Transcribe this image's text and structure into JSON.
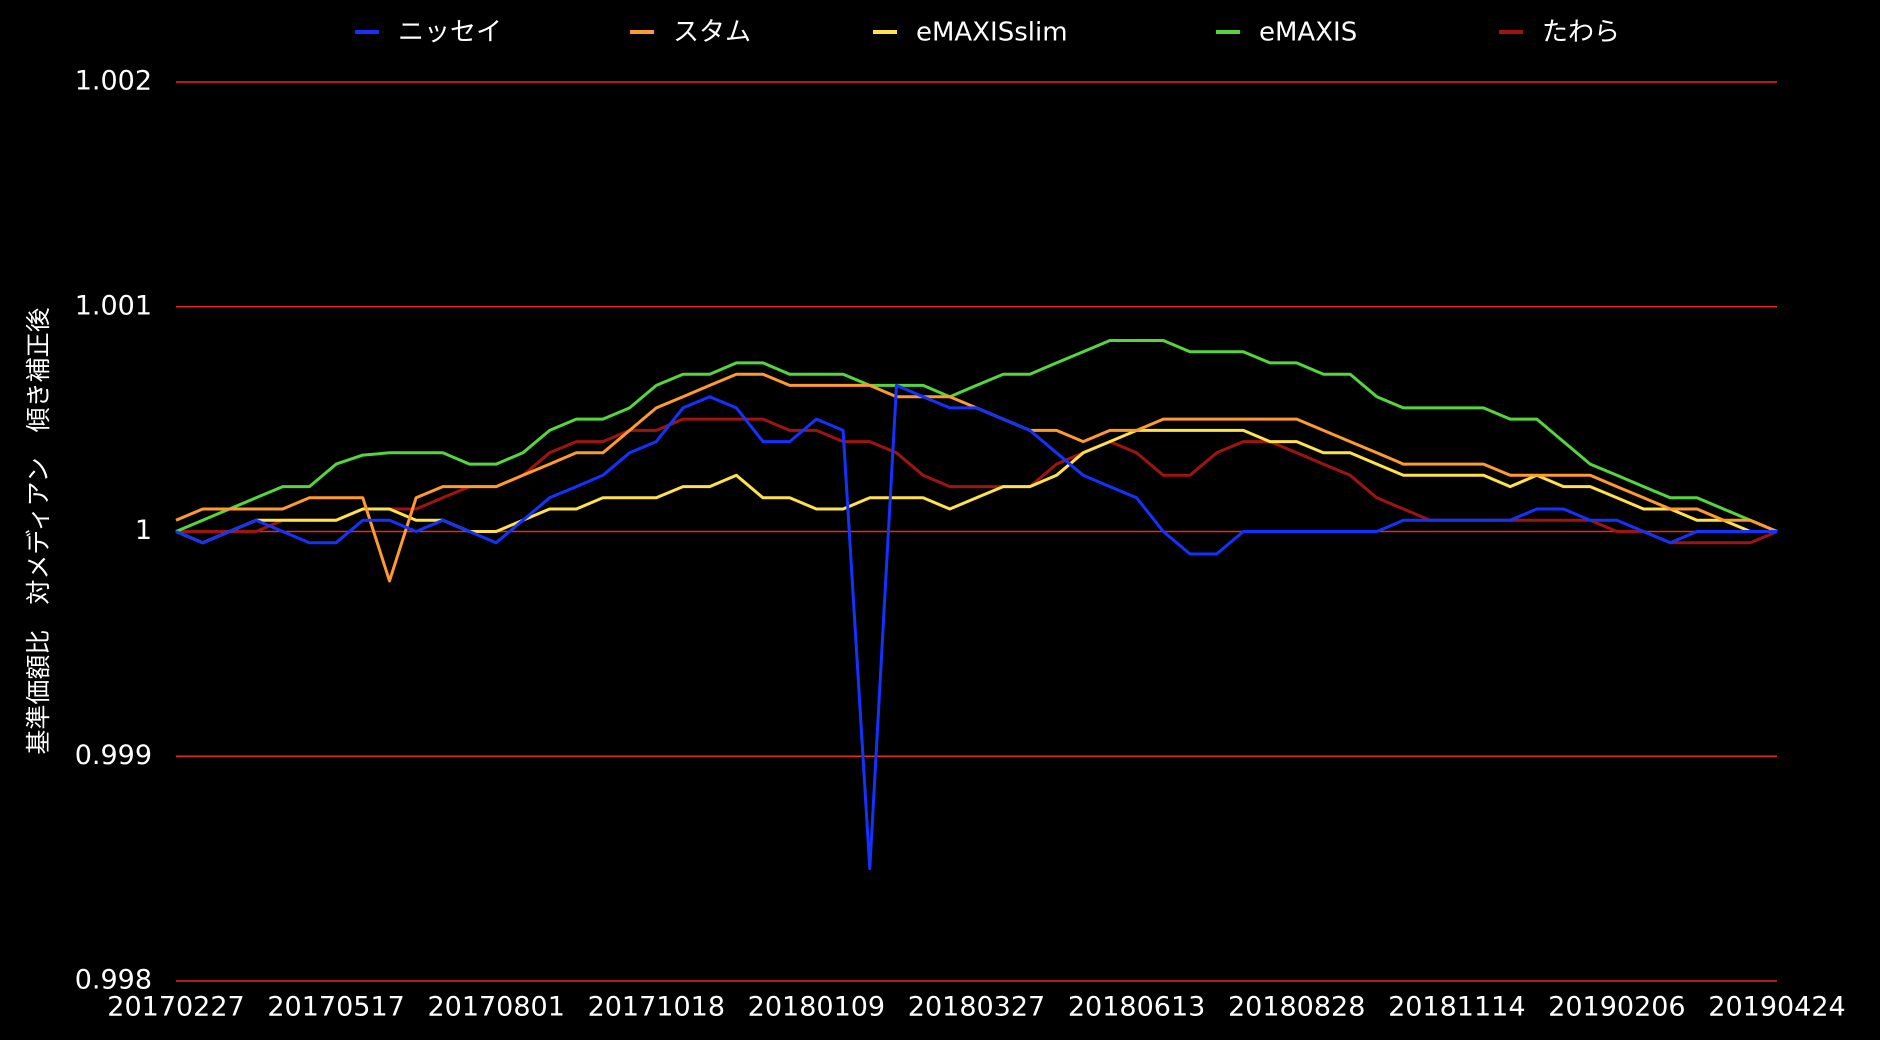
{
  "chart_data": {
    "type": "line",
    "y_label": "基準価額比　対メディアン　傾き補正後",
    "categories": [
      "20170227",
      null,
      null,
      null,
      null,
      null,
      "20170517",
      null,
      null,
      null,
      null,
      null,
      "20170801",
      null,
      null,
      null,
      null,
      null,
      "20171018",
      null,
      null,
      null,
      null,
      null,
      "20180109",
      null,
      null,
      null,
      null,
      null,
      "20180327",
      null,
      null,
      null,
      null,
      null,
      "20180613",
      null,
      null,
      null,
      null,
      null,
      "20180828",
      null,
      null,
      null,
      null,
      null,
      "20181114",
      null,
      null,
      null,
      null,
      null,
      "20190206",
      null,
      null,
      null,
      null,
      null,
      "20190424"
    ],
    "ylim": [
      0.998,
      1.002
    ],
    "yticks": [
      0.998,
      0.999,
      1,
      1.001,
      1.002
    ],
    "grid": true,
    "grid_color": "#e8281e",
    "legend": "top",
    "series": [
      {
        "name": "ニッセイ",
        "color": "#1432ff",
        "values": [
          1,
          0.99995,
          1,
          1.00005,
          1,
          0.99995,
          0.99995,
          1.00005,
          1.00005,
          1,
          1.00005,
          1,
          0.99995,
          1.00005,
          1.00015,
          1.0002,
          1.00025,
          1.00035,
          1.0004,
          1.00055,
          1.0006,
          1.00055,
          1.0004,
          1.0004,
          1.0005,
          1.00045,
          0.9985,
          1.00065,
          1.0006,
          1.00055,
          1.00055,
          1.0005,
          1.00045,
          1.00035,
          1.00025,
          1.0002,
          1.00015,
          1,
          0.9999,
          0.9999,
          1,
          1,
          1,
          1,
          1,
          1,
          1.00005,
          1.00005,
          1.00005,
          1.00005,
          1.00005,
          1.0001,
          1.0001,
          1.00005,
          1.00005,
          1,
          0.99995,
          1,
          1,
          1,
          1
        ]
      },
      {
        "name": "スタム",
        "color": "#ff9a2e",
        "values": [
          1.00005,
          1.0001,
          1.0001,
          1.0001,
          1.0001,
          1.00015,
          1.00015,
          1.00015,
          0.99978,
          1.00015,
          1.0002,
          1.0002,
          1.0002,
          1.00025,
          1.0003,
          1.00035,
          1.00035,
          1.00045,
          1.00055,
          1.0006,
          1.00065,
          1.0007,
          1.0007,
          1.00065,
          1.00065,
          1.00065,
          1.00065,
          1.0006,
          1.0006,
          1.0006,
          1.00055,
          1.0005,
          1.00045,
          1.00045,
          1.0004,
          1.00045,
          1.00045,
          1.0005,
          1.0005,
          1.0005,
          1.0005,
          1.0005,
          1.0005,
          1.00045,
          1.0004,
          1.00035,
          1.0003,
          1.0003,
          1.0003,
          1.0003,
          1.00025,
          1.00025,
          1.00025,
          1.00025,
          1.0002,
          1.00015,
          1.0001,
          1.0001,
          1.00005,
          1.00005,
          1
        ]
      },
      {
        "name": "eMAXISslim",
        "color": "#ffe14a",
        "values": [
          1,
          0.99995,
          1,
          1.00005,
          1.00005,
          1.00005,
          1.00005,
          1.0001,
          1.0001,
          1.00005,
          1.00005,
          1,
          1,
          1.00005,
          1.0001,
          1.0001,
          1.00015,
          1.00015,
          1.00015,
          1.0002,
          1.0002,
          1.00025,
          1.00015,
          1.00015,
          1.0001,
          1.0001,
          1.00015,
          1.00015,
          1.00015,
          1.0001,
          1.00015,
          1.0002,
          1.0002,
          1.00025,
          1.00035,
          1.0004,
          1.00045,
          1.00045,
          1.00045,
          1.00045,
          1.00045,
          1.0004,
          1.0004,
          1.00035,
          1.00035,
          1.0003,
          1.00025,
          1.00025,
          1.00025,
          1.00025,
          1.0002,
          1.00025,
          1.0002,
          1.0002,
          1.00015,
          1.0001,
          1.0001,
          1.00005,
          1.00005,
          1,
          1
        ]
      },
      {
        "name": "eMAXIS",
        "color": "#55d63c",
        "values": [
          1,
          1.00005,
          1.0001,
          1.00015,
          1.0002,
          1.0002,
          1.0003,
          1.00034,
          1.00035,
          1.00035,
          1.00035,
          1.0003,
          1.0003,
          1.00035,
          1.00045,
          1.0005,
          1.0005,
          1.00055,
          1.00065,
          1.0007,
          1.0007,
          1.00075,
          1.00075,
          1.0007,
          1.0007,
          1.0007,
          1.00065,
          1.00065,
          1.00065,
          1.0006,
          1.00065,
          1.0007,
          1.0007,
          1.00075,
          1.0008,
          1.00085,
          1.00085,
          1.00085,
          1.0008,
          1.0008,
          1.0008,
          1.00075,
          1.00075,
          1.0007,
          1.0007,
          1.0006,
          1.00055,
          1.00055,
          1.00055,
          1.00055,
          1.0005,
          1.0005,
          1.0004,
          1.0003,
          1.00025,
          1.0002,
          1.00015,
          1.00015,
          1.0001,
          1.00005,
          1
        ]
      },
      {
        "name": "たわら",
        "color": "#a0140f",
        "values": [
          1,
          1,
          1,
          1,
          1.00005,
          1.00005,
          1.00005,
          1.0001,
          1.0001,
          1.0001,
          1.00015,
          1.0002,
          1.0002,
          1.00025,
          1.00035,
          1.0004,
          1.0004,
          1.00045,
          1.00045,
          1.0005,
          1.0005,
          1.0005,
          1.0005,
          1.00045,
          1.00045,
          1.0004,
          1.0004,
          1.00035,
          1.00025,
          1.0002,
          1.0002,
          1.0002,
          1.0002,
          1.0003,
          1.00035,
          1.0004,
          1.00035,
          1.00025,
          1.00025,
          1.00035,
          1.0004,
          1.0004,
          1.00035,
          1.0003,
          1.00025,
          1.00015,
          1.0001,
          1.00005,
          1.00005,
          1.00005,
          1.00005,
          1.00005,
          1.00005,
          1.00005,
          1,
          1,
          0.99995,
          0.99995,
          0.99995,
          0.99995,
          1
        ]
      }
    ]
  }
}
